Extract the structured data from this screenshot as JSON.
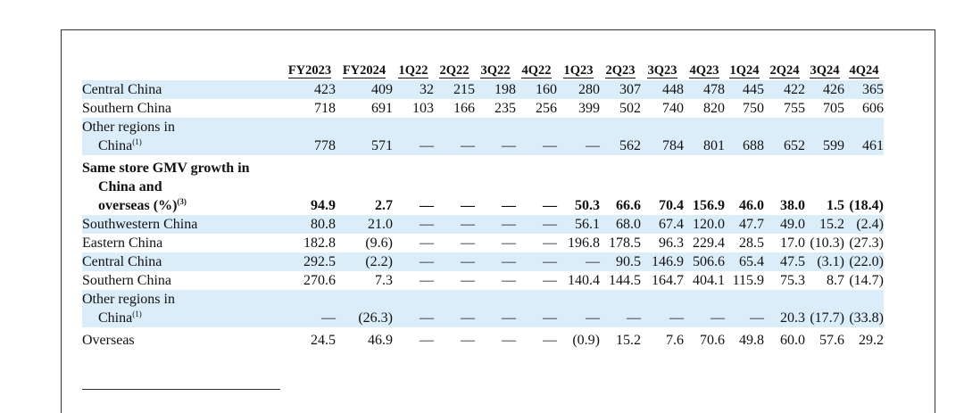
{
  "columns": [
    "FY2023",
    "FY2024",
    "1Q22",
    "2Q22",
    "3Q22",
    "4Q22",
    "1Q23",
    "2Q23",
    "3Q23",
    "4Q23",
    "1Q24",
    "2Q24",
    "3Q24",
    "4Q24"
  ],
  "rows": {
    "central_china_1": {
      "label": "Central China",
      "values": [
        "423",
        "409",
        "32",
        "215",
        "198",
        "160",
        "280",
        "307",
        "448",
        "478",
        "445",
        "422",
        "426",
        "365"
      ]
    },
    "southern_china_1": {
      "label": "Southern China",
      "values": [
        "718",
        "691",
        "103",
        "166",
        "235",
        "256",
        "399",
        "502",
        "740",
        "820",
        "750",
        "755",
        "705",
        "606"
      ]
    },
    "other_regions_1": {
      "label_line1": "Other regions in",
      "label_line2": "China",
      "footnote": "(1)",
      "values": [
        "778",
        "571",
        "—",
        "—",
        "—",
        "—",
        "—",
        "562",
        "784",
        "801",
        "688",
        "652",
        "599",
        "461"
      ]
    },
    "sssg_header": {
      "line1": "Same store GMV growth in",
      "line2": "China and",
      "line3": "overseas (%)",
      "footnote": "(3)",
      "values": [
        "94.9",
        "2.7",
        "—",
        "—",
        "—",
        "—",
        "50.3",
        "66.6",
        "70.4",
        "156.9",
        "46.0",
        "38.0",
        "1.5",
        "(18.4)"
      ]
    },
    "southwestern_china": {
      "label": "Southwestern China",
      "values": [
        "80.8",
        "21.0",
        "—",
        "—",
        "—",
        "—",
        "56.1",
        "68.0",
        "67.4",
        "120.0",
        "47.7",
        "49.0",
        "15.2",
        "(2.4)"
      ]
    },
    "eastern_china": {
      "label": "Eastern China",
      "values": [
        "182.8",
        "(9.6)",
        "—",
        "—",
        "—",
        "—",
        "196.8",
        "178.5",
        "96.3",
        "229.4",
        "28.5",
        "17.0",
        "(10.3)",
        "(27.3)"
      ]
    },
    "central_china_2": {
      "label": "Central China",
      "values": [
        "292.5",
        "(2.2)",
        "—",
        "—",
        "—",
        "—",
        "—",
        "90.5",
        "146.9",
        "506.6",
        "65.4",
        "47.5",
        "(3.1)",
        "(22.0)"
      ]
    },
    "southern_china_2": {
      "label": "Southern China",
      "values": [
        "270.6",
        "7.3",
        "—",
        "—",
        "—",
        "—",
        "140.4",
        "144.5",
        "164.7",
        "404.1",
        "115.9",
        "75.3",
        "8.7",
        "(14.7)"
      ]
    },
    "other_regions_2": {
      "label_line1": "Other regions in",
      "label_line2": "China",
      "footnote": "(1)",
      "values": [
        "—",
        "(26.3)",
        "—",
        "—",
        "—",
        "—",
        "—",
        "—",
        "—",
        "—",
        "—",
        "20.3",
        "(17.7)",
        "(33.8)"
      ]
    },
    "overseas": {
      "label": "Overseas",
      "values": [
        "24.5",
        "46.9",
        "—",
        "—",
        "—",
        "—",
        "(0.9)",
        "15.2",
        "7.6",
        "70.6",
        "49.8",
        "60.0",
        "57.6",
        "29.2"
      ]
    }
  }
}
